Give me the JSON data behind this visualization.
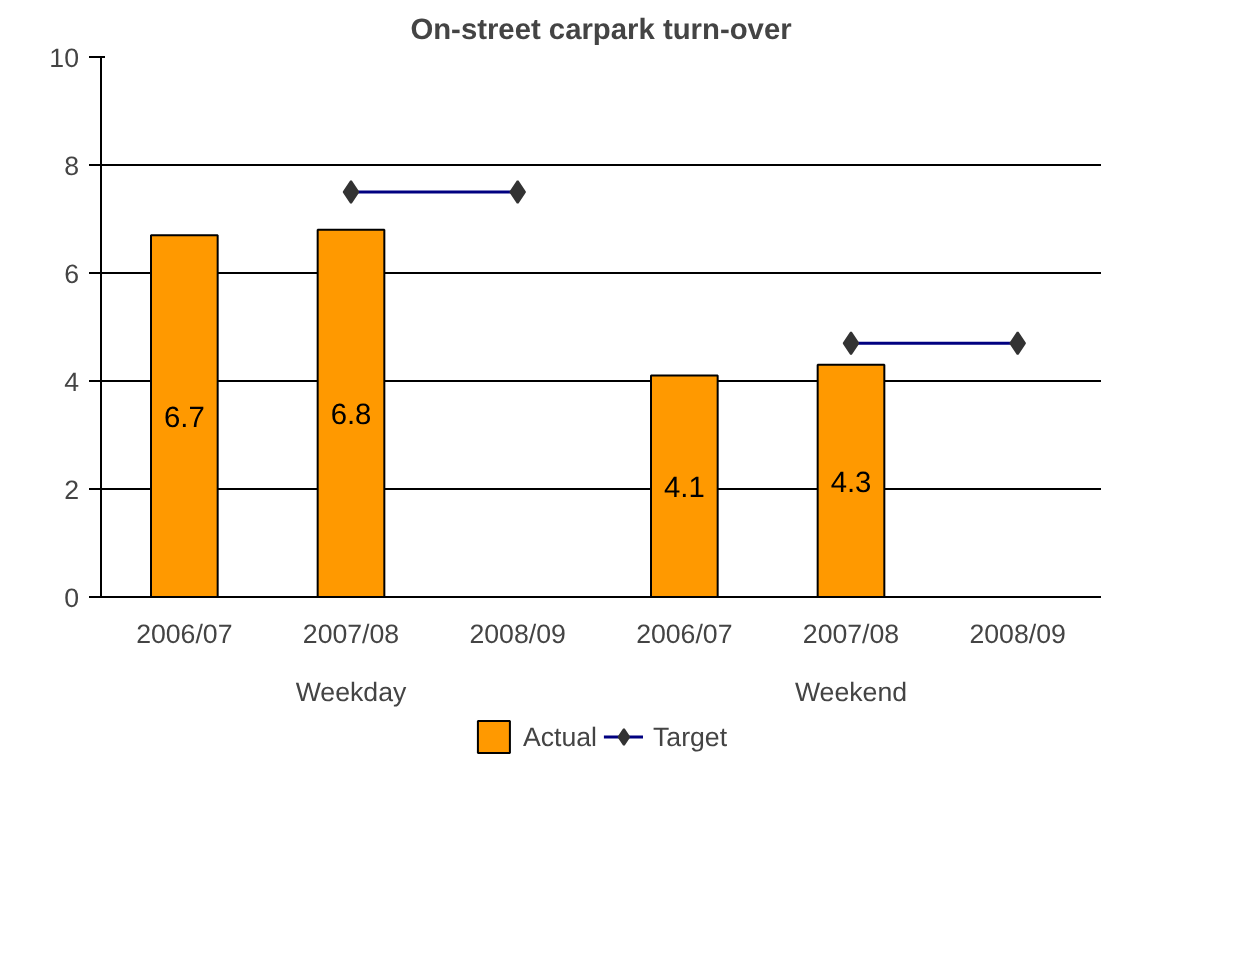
{
  "chart_data": {
    "type": "bar",
    "title": "On-street carpark turn-over",
    "categories": [
      "2006/07",
      "2007/08",
      "2008/09",
      "2006/07",
      "2007/08",
      "2008/09"
    ],
    "annotations": [
      "Weekday",
      "Weekend"
    ],
    "series": [
      {
        "name": "Actual",
        "color": "#ff9900",
        "values": [
          6.7,
          6.8,
          null,
          4.1,
          4.3,
          null
        ],
        "value_labels": [
          "6.7",
          "6.8",
          null,
          "4.1",
          "4.3",
          null
        ]
      },
      {
        "name": "Target",
        "type": "line",
        "color": "#000080",
        "marker": "diamond",
        "values": [
          null,
          7.5,
          7.5,
          null,
          4.7,
          4.7
        ]
      }
    ],
    "ylim": [
      0,
      10
    ],
    "yticks": [
      0,
      2,
      4,
      6,
      8,
      10
    ],
    "grid": "y",
    "legend": "bottom"
  }
}
